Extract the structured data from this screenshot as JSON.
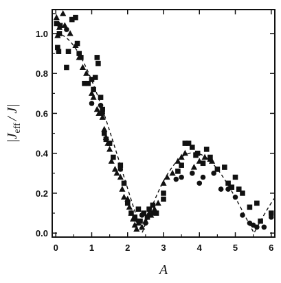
{
  "chart_data": {
    "type": "scatter",
    "xlabel": "A",
    "ylabel_main": "|J",
    "ylabel_sub": "eff",
    "ylabel_tail": "/ J|",
    "xlim": [
      -0.1,
      6.1
    ],
    "ylim": [
      -0.02,
      1.12
    ],
    "xticks": [
      0,
      1,
      2,
      3,
      4,
      5,
      6
    ],
    "yticks": [
      0.0,
      0.2,
      0.4,
      0.6,
      0.8,
      1.0
    ],
    "ytick_labels": [
      "0.0",
      "0.2",
      "0.4",
      "0.6",
      "0.8",
      "1.0"
    ],
    "grid": false,
    "legend": "none",
    "colors": {
      "marker": "#111111",
      "curve": "#111111",
      "axes": "#111111"
    },
    "series": [
      {
        "marker": "square",
        "points": [
          [
            0.02,
            1.05
          ],
          [
            0.05,
            0.93
          ],
          [
            0.08,
            0.91
          ],
          [
            0.1,
            1.0
          ],
          [
            0.12,
            1.04
          ],
          [
            0.3,
            0.83
          ],
          [
            0.35,
            0.91
          ],
          [
            0.45,
            1.07
          ],
          [
            0.55,
            1.08
          ],
          [
            0.6,
            0.95
          ],
          [
            0.65,
            0.9
          ],
          [
            0.7,
            0.88
          ],
          [
            0.8,
            0.75
          ],
          [
            0.9,
            0.75
          ],
          [
            1.0,
            0.77
          ],
          [
            1.05,
            0.72
          ],
          [
            1.1,
            0.78
          ],
          [
            1.15,
            0.88
          ],
          [
            1.18,
            0.85
          ],
          [
            1.25,
            0.68
          ],
          [
            1.3,
            0.62
          ],
          [
            1.35,
            0.5
          ],
          [
            1.4,
            0.47
          ],
          [
            1.5,
            0.45
          ],
          [
            1.6,
            0.38
          ],
          [
            1.8,
            0.34
          ],
          [
            1.9,
            0.25
          ],
          [
            2.0,
            0.15
          ],
          [
            2.1,
            0.1
          ],
          [
            2.2,
            0.08
          ],
          [
            2.3,
            0.12
          ],
          [
            2.35,
            0.06
          ],
          [
            2.45,
            0.1
          ],
          [
            2.55,
            0.08
          ],
          [
            2.6,
            0.12
          ],
          [
            2.7,
            0.14
          ],
          [
            2.8,
            0.1
          ],
          [
            3.0,
            0.2
          ],
          [
            3.0,
            0.17
          ],
          [
            3.4,
            0.31
          ],
          [
            3.5,
            0.34
          ],
          [
            3.6,
            0.45
          ],
          [
            3.7,
            0.45
          ],
          [
            3.8,
            0.43
          ],
          [
            3.9,
            0.39
          ],
          [
            3.95,
            0.4
          ],
          [
            4.1,
            0.35
          ],
          [
            4.2,
            0.42
          ],
          [
            4.3,
            0.38
          ],
          [
            4.5,
            0.32
          ],
          [
            4.7,
            0.33
          ],
          [
            4.8,
            0.25
          ],
          [
            4.9,
            0.23
          ],
          [
            5.0,
            0.28
          ],
          [
            5.1,
            0.22
          ],
          [
            5.2,
            0.2
          ],
          [
            5.4,
            0.13
          ],
          [
            5.6,
            0.15
          ],
          [
            5.7,
            0.06
          ],
          [
            6.0,
            0.1
          ]
        ]
      },
      {
        "marker": "triangle",
        "points": [
          [
            0.02,
            1.08
          ],
          [
            0.05,
            0.99
          ],
          [
            0.1,
            1.03
          ],
          [
            0.2,
            1.1
          ],
          [
            0.25,
            1.04
          ],
          [
            0.4,
            1.0
          ],
          [
            0.55,
            0.94
          ],
          [
            0.65,
            0.88
          ],
          [
            0.75,
            0.83
          ],
          [
            0.85,
            0.8
          ],
          [
            1.0,
            0.7
          ],
          [
            1.05,
            0.68
          ],
          [
            1.15,
            0.62
          ],
          [
            1.2,
            0.6
          ],
          [
            1.3,
            0.58
          ],
          [
            1.35,
            0.52
          ],
          [
            1.4,
            0.48
          ],
          [
            1.45,
            0.45
          ],
          [
            1.5,
            0.42
          ],
          [
            1.55,
            0.36
          ],
          [
            1.65,
            0.32
          ],
          [
            1.7,
            0.3
          ],
          [
            1.8,
            0.28
          ],
          [
            1.85,
            0.22
          ],
          [
            1.9,
            0.18
          ],
          [
            2.0,
            0.17
          ],
          [
            2.05,
            0.13
          ],
          [
            2.1,
            0.1
          ],
          [
            2.15,
            0.07
          ],
          [
            2.2,
            0.04
          ],
          [
            2.25,
            0.02
          ],
          [
            2.3,
            0.05
          ],
          [
            2.4,
            0.03
          ],
          [
            2.5,
            0.06
          ],
          [
            2.6,
            0.1
          ],
          [
            2.65,
            0.09
          ],
          [
            2.75,
            0.12
          ],
          [
            2.85,
            0.15
          ],
          [
            3.0,
            0.25
          ],
          [
            3.1,
            0.28
          ],
          [
            3.25,
            0.3
          ],
          [
            3.4,
            0.36
          ],
          [
            3.5,
            0.38
          ],
          [
            3.6,
            0.4
          ],
          [
            3.85,
            0.33
          ],
          [
            4.0,
            0.36
          ],
          [
            4.15,
            0.38
          ],
          [
            4.3,
            0.37
          ],
          [
            4.35,
            0.36
          ]
        ]
      },
      {
        "marker": "circle",
        "points": [
          [
            0.05,
            1.05
          ],
          [
            0.3,
            1.02
          ],
          [
            1.0,
            0.65
          ],
          [
            1.25,
            0.64
          ],
          [
            1.3,
            0.6
          ],
          [
            1.8,
            0.32
          ],
          [
            2.2,
            0.07
          ],
          [
            2.3,
            0.06
          ],
          [
            2.4,
            0.09
          ],
          [
            2.5,
            0.05
          ],
          [
            2.7,
            0.1
          ],
          [
            3.35,
            0.27
          ],
          [
            3.5,
            0.28
          ],
          [
            3.8,
            0.3
          ],
          [
            4.0,
            0.25
          ],
          [
            4.1,
            0.28
          ],
          [
            4.4,
            0.3
          ],
          [
            4.6,
            0.22
          ],
          [
            4.8,
            0.22
          ],
          [
            5.0,
            0.18
          ],
          [
            5.2,
            0.09
          ],
          [
            5.4,
            0.05
          ],
          [
            5.5,
            0.04
          ],
          [
            5.6,
            0.03
          ],
          [
            5.8,
            0.03
          ],
          [
            6.0,
            0.08
          ]
        ]
      }
    ]
  }
}
